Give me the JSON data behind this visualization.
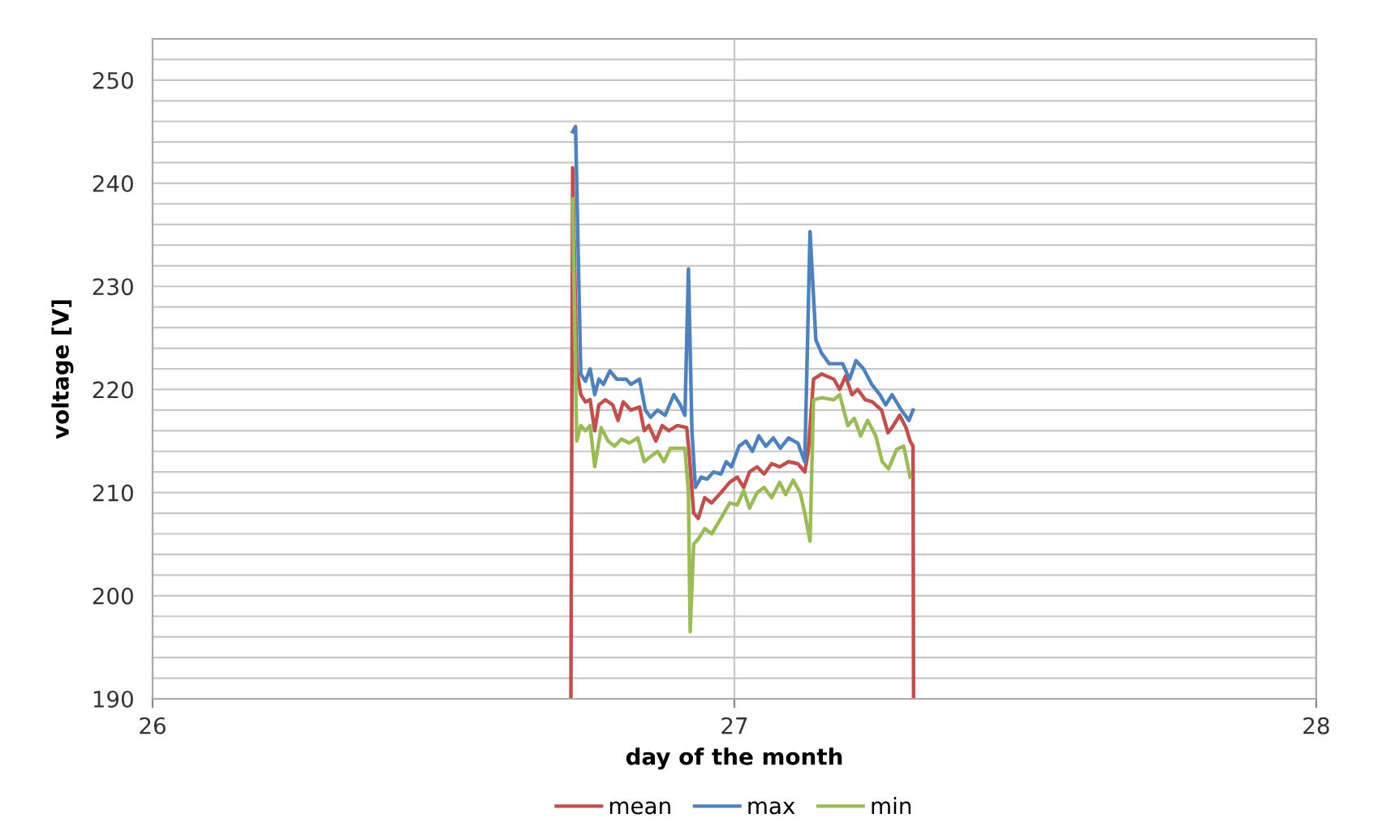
{
  "chart_data": {
    "type": "line",
    "xlabel": "day of the month",
    "ylabel": "voltage [V]",
    "xlim": [
      26,
      28
    ],
    "xticks": [
      26,
      27,
      28
    ],
    "ylim": [
      190,
      254
    ],
    "yticks": [
      190,
      {
        "value": 192,
        "label": null
      },
      {
        "value": 194,
        "label": null
      },
      {
        "value": 196,
        "label": null
      },
      {
        "value": 198,
        "label": null
      },
      200,
      {
        "value": 202,
        "label": null
      },
      {
        "value": 204,
        "label": null
      },
      {
        "value": 206,
        "label": null
      },
      {
        "value": 208,
        "label": null
      },
      210,
      {
        "value": 212,
        "label": null
      },
      {
        "value": 214,
        "label": null
      },
      {
        "value": 216,
        "label": null
      },
      {
        "value": 218,
        "label": null
      },
      220,
      {
        "value": 222,
        "label": null
      },
      {
        "value": 224,
        "label": null
      },
      {
        "value": 226,
        "label": null
      },
      {
        "value": 228,
        "label": null
      },
      230,
      {
        "value": 232,
        "label": null
      },
      {
        "value": 234,
        "label": null
      },
      {
        "value": 236,
        "label": null
      },
      {
        "value": 238,
        "label": null
      },
      240,
      {
        "value": 242,
        "label": null
      },
      {
        "value": 244,
        "label": null
      },
      {
        "value": 246,
        "label": null
      },
      {
        "value": 248,
        "label": null
      },
      250,
      {
        "value": 252,
        "label": null
      },
      {
        "value": 254,
        "label": null
      }
    ],
    "grid": true,
    "legend": "bottom",
    "marker": "none",
    "line_style": "solid",
    "series": [
      {
        "name": "mean",
        "color": "#c0504d",
        "x": [
          26.719,
          26.722,
          26.729,
          26.736,
          26.744,
          26.752,
          26.76,
          26.767,
          26.778,
          26.791,
          26.8,
          26.809,
          26.822,
          26.837,
          26.845,
          26.853,
          26.865,
          26.876,
          26.887,
          26.902,
          26.918,
          26.922,
          26.93,
          26.938,
          26.949,
          26.961,
          26.977,
          26.992,
          27.005,
          27.016,
          27.026,
          27.039,
          27.051,
          27.064,
          27.078,
          27.093,
          27.109,
          27.121,
          27.127,
          27.136,
          27.15,
          27.171,
          27.181,
          27.191,
          27.202,
          27.212,
          27.225,
          27.237,
          27.253,
          27.264,
          27.271,
          27.284,
          27.295,
          27.302,
          27.307,
          27.308
        ],
        "values": [
          190,
          241.5,
          222,
          219.5,
          218.8,
          219,
          216,
          218.5,
          219,
          218.5,
          217,
          218.8,
          218,
          218.3,
          216,
          216.5,
          215,
          216.5,
          216,
          216.5,
          216.3,
          214,
          208,
          207.5,
          209.5,
          209,
          210,
          211,
          211.5,
          210.5,
          212,
          212.5,
          211.8,
          212.8,
          212.5,
          213,
          212.8,
          212,
          214,
          221,
          221.5,
          221,
          220,
          221.3,
          219.5,
          220,
          219,
          218.8,
          218,
          215.8,
          216.3,
          217.5,
          216.3,
          215,
          214.5,
          190
        ]
      },
      {
        "name": "max",
        "color": "#4f81bd",
        "x": [
          26.722,
          26.727,
          26.732,
          26.736,
          26.744,
          26.752,
          26.76,
          26.767,
          26.775,
          26.786,
          26.798,
          26.814,
          26.822,
          26.837,
          26.847,
          26.856,
          26.868,
          26.881,
          26.896,
          26.907,
          26.915,
          26.921,
          26.927,
          26.933,
          26.943,
          26.953,
          26.964,
          26.977,
          26.986,
          26.995,
          27.008,
          27.02,
          27.031,
          27.042,
          27.054,
          27.067,
          27.079,
          27.093,
          27.109,
          27.121,
          27.13,
          27.14,
          27.15,
          27.163,
          27.186,
          27.198,
          27.209,
          27.222,
          27.236,
          27.25,
          27.26,
          27.271,
          27.287,
          27.3,
          27.307
        ],
        "values": [
          245,
          245.5,
          232,
          221.5,
          220.8,
          222,
          219.5,
          221,
          220.5,
          221.8,
          221,
          221,
          220.5,
          221,
          218,
          217.3,
          218,
          217.5,
          219.5,
          218.5,
          217.5,
          231.7,
          216,
          210.5,
          211.5,
          211.3,
          212,
          211.8,
          213,
          212.5,
          214.5,
          215,
          214,
          215.5,
          214.5,
          215.3,
          214.3,
          215.3,
          214.8,
          213,
          235.3,
          224.8,
          223.5,
          222.5,
          222.5,
          221,
          222.8,
          222,
          220.5,
          219.5,
          218.5,
          219.5,
          218,
          217,
          218
        ]
      },
      {
        "name": "min",
        "color": "#9bbb59",
        "x": [
          26.722,
          26.729,
          26.736,
          26.744,
          26.752,
          26.76,
          26.771,
          26.783,
          26.794,
          26.806,
          26.819,
          26.834,
          26.845,
          26.856,
          26.868,
          26.879,
          26.89,
          26.915,
          26.921,
          26.924,
          26.93,
          26.938,
          26.949,
          26.961,
          26.977,
          26.992,
          27.005,
          27.016,
          27.026,
          27.039,
          27.051,
          27.064,
          27.078,
          27.088,
          27.101,
          27.113,
          27.121,
          27.13,
          27.136,
          27.15,
          27.171,
          27.181,
          27.195,
          27.206,
          27.217,
          27.229,
          27.243,
          27.254,
          27.265,
          27.279,
          27.291,
          27.302
        ],
        "values": [
          238.5,
          215,
          216.5,
          216,
          216.5,
          212.5,
          216.3,
          215,
          214.5,
          215.2,
          214.8,
          215.3,
          213,
          213.5,
          214,
          213,
          214.3,
          214.3,
          210,
          196.5,
          205,
          205.5,
          206.5,
          206,
          207.5,
          209,
          208.8,
          210.2,
          208.5,
          210,
          210.5,
          209.5,
          211,
          209.8,
          211.2,
          210,
          208,
          205.3,
          219,
          219.2,
          219,
          219.5,
          216.5,
          217.2,
          215.5,
          217,
          215.5,
          213,
          212.3,
          214.2,
          214.5,
          211.5
        ]
      }
    ]
  }
}
